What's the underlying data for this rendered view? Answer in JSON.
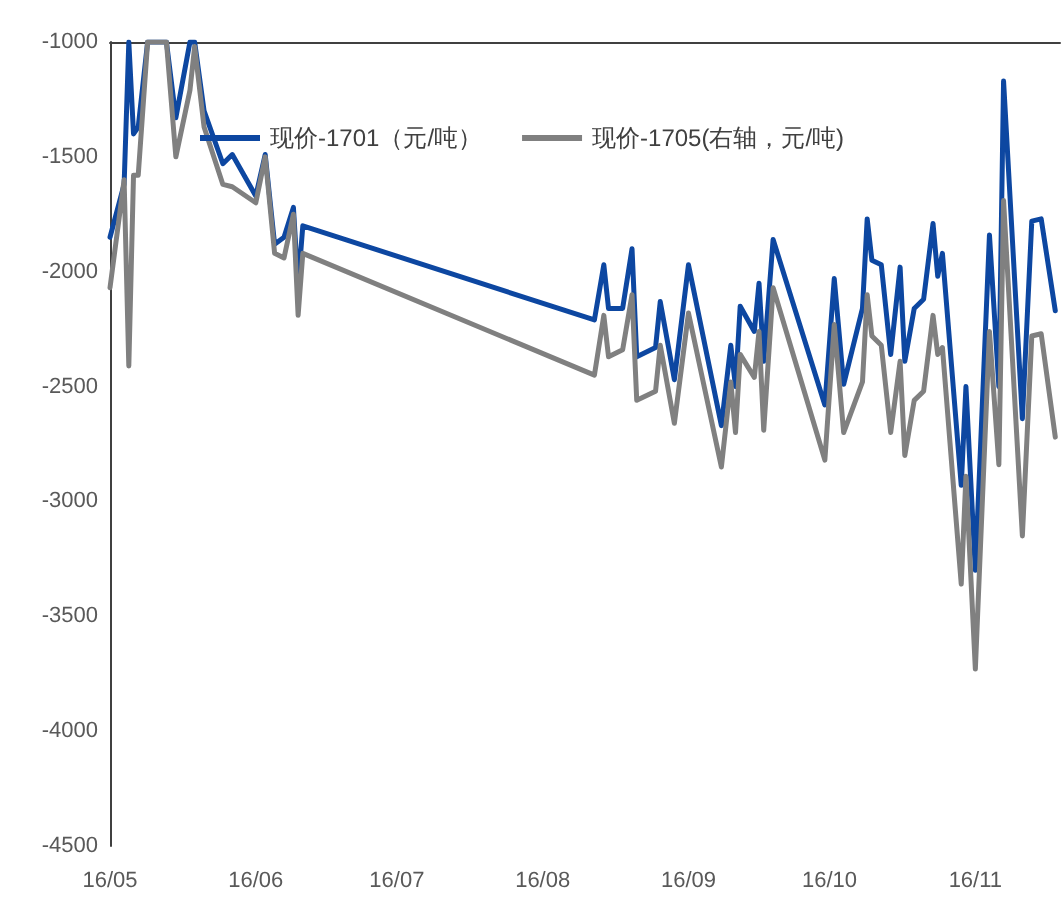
{
  "chart_data": {
    "type": "line",
    "x": [
      "--05-01",
      "--05-04",
      "--05-05",
      "--05-06",
      "--05-07",
      "--05-09",
      "--05-13",
      "--05-15",
      "--05-18",
      "--05-19",
      "--05-21",
      "--05-25",
      "--05-27",
      "--06-01",
      "--06-03",
      "--06-05",
      "--06-07",
      "--06-09",
      "--06-10",
      "--06-11",
      "--08-12",
      "--08-14",
      "--08-15",
      "--08-18",
      "--08-20",
      "--08-21",
      "--08-25",
      "--08-26",
      "--08-29",
      "--09-01",
      "--09-08",
      "--09-10",
      "--09-11",
      "--09-12",
      "--09-15",
      "--09-16",
      "--09-17",
      "--09-19",
      "--09-30",
      "--10-02",
      "--10-04",
      "--10-08",
      "--10-09",
      "--10-10",
      "--10-12",
      "--10-14",
      "--10-16",
      "--10-17",
      "--10-19",
      "--10-21",
      "--10-23",
      "--10-24",
      "--10-25",
      "--10-29",
      "--10-30",
      "--11-01",
      "--11-04",
      "--11-06",
      "--11-07",
      "--11-11",
      "--11-13",
      "--11-15",
      "--11-18"
    ],
    "series": [
      {
        "name": "现价-1701（元/吨）",
        "color": "#0d47a1",
        "values": [
          -1850,
          -1620,
          -1000,
          -1400,
          -1370,
          -1000,
          -1000,
          -1330,
          -1000,
          -1000,
          -1300,
          -1530,
          -1490,
          -1670,
          -1490,
          -1880,
          -1850,
          -1720,
          -2060,
          -1800,
          -2210,
          -1970,
          -2160,
          -2160,
          -1900,
          -2370,
          -2330,
          -2130,
          -2470,
          -1970,
          -2670,
          -2320,
          -2500,
          -2150,
          -2260,
          -2050,
          -2390,
          -1860,
          -2580,
          -2030,
          -2490,
          -2160,
          -1770,
          -1950,
          -1970,
          -2360,
          -1980,
          -2390,
          -2160,
          -2120,
          -1790,
          -2020,
          -1920,
          -2930,
          -2500,
          -3300,
          -1840,
          -2500,
          -1170,
          -2640,
          -1780,
          -1770,
          -2170
        ]
      },
      {
        "name": "现价-1705(右轴，元/吨)",
        "color": "#808080",
        "values": [
          -2070,
          -1600,
          -2410,
          -1580,
          -1580,
          -1000,
          -1000,
          -1500,
          -1210,
          -1020,
          -1370,
          -1620,
          -1630,
          -1700,
          -1500,
          -1920,
          -1940,
          -1750,
          -2190,
          -1920,
          -2450,
          -2190,
          -2370,
          -2340,
          -2100,
          -2560,
          -2520,
          -2320,
          -2660,
          -2180,
          -2850,
          -2480,
          -2700,
          -2360,
          -2460,
          -2260,
          -2690,
          -2070,
          -2820,
          -2230,
          -2700,
          -2480,
          -2100,
          -2280,
          -2320,
          -2700,
          -2390,
          -2800,
          -2560,
          -2520,
          -2190,
          -2360,
          -2330,
          -3360,
          -2890,
          -3730,
          -2260,
          -2840,
          -1690,
          -3150,
          -2280,
          -2270,
          -2720
        ]
      }
    ],
    "xlim": [
      "--05-01",
      "--11-19"
    ],
    "xticks": [
      {
        "value": "--05-01",
        "label": "16/05"
      },
      {
        "value": "--06-01",
        "label": "16/06"
      },
      {
        "value": "--07-01",
        "label": "16/07"
      },
      {
        "value": "--08-01",
        "label": "16/08"
      },
      {
        "value": "--09-01",
        "label": "16/09"
      },
      {
        "value": "--10-01",
        "label": "16/10"
      },
      {
        "value": "--11-01",
        "label": "16/11"
      }
    ],
    "ylim": [
      -4500,
      -1000
    ],
    "yticks": [
      -4500,
      -4000,
      -3500,
      -3000,
      -2500,
      -2000,
      -1500,
      -1000
    ],
    "legend": "top",
    "marker": "none",
    "line_style": "solid",
    "grid": false
  }
}
